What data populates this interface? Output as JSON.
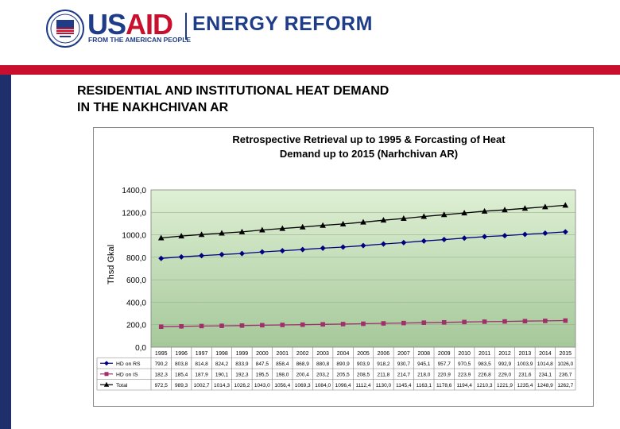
{
  "header": {
    "logo_mark": "USAID",
    "logo_accent": "AID",
    "logo_tagline": "FROM THE AMERICAN PEOPLE",
    "program_name": "ENERGY REFORM",
    "seal_icon": "usaid-seal-icon",
    "brand_blue": "#1f3c88",
    "brand_red": "#c8102e"
  },
  "slide": {
    "title_line1": "RESIDENTIAL AND INSTITUTIONAL HEAT DEMAND",
    "title_line2": "IN THE NAKHCHIVAN AR"
  },
  "chart_data": {
    "type": "line",
    "title_line1": "Retrospective Retrieval up to 1995 & Forcasting of Heat",
    "title_line2": "Demand up to 2015 (Narhchivan AR)",
    "ylabel": "Thsd Gkal",
    "xlabel": "",
    "ylim": [
      0,
      1400
    ],
    "yticks": [
      "0,0",
      "200,0",
      "400,0",
      "600,0",
      "800,0",
      "1000,0",
      "1200,0",
      "1400,0"
    ],
    "grid": true,
    "legend": "data-table",
    "categories": [
      "1995",
      "1996",
      "1997",
      "1998",
      "1999",
      "2000",
      "2001",
      "2002",
      "2003",
      "2004",
      "2005",
      "2006",
      "2007",
      "2008",
      "2009",
      "2010",
      "2011",
      "2012",
      "2013",
      "2014",
      "2015"
    ],
    "series": [
      {
        "name": "HD on RS",
        "color": "#000080",
        "marker": "diamond",
        "values": [
          790.2,
          803.8,
          814.8,
          824.2,
          833.9,
          847.5,
          858.4,
          868.9,
          880.8,
          890.9,
          903.9,
          918.2,
          930.7,
          945.1,
          957.7,
          970.5,
          983.5,
          992.9,
          1003.9,
          1014.8,
          1026.0
        ],
        "labels": [
          "790,2",
          "803,8",
          "814,8",
          "824,2",
          "833,9",
          "847,5",
          "858,4",
          "868,9",
          "880,8",
          "890,9",
          "903,9",
          "918,2",
          "930,7",
          "945,1",
          "957,7",
          "970,5",
          "983,5",
          "992,9",
          "1003,9",
          "1014,8",
          "1026,0"
        ]
      },
      {
        "name": "HD on IS",
        "color": "#a0306a",
        "marker": "square",
        "values": [
          182.3,
          185.4,
          187.9,
          190.1,
          192.3,
          195.5,
          198.0,
          200.4,
          203.2,
          205.5,
          208.5,
          211.8,
          214.7,
          218.0,
          220.9,
          223.9,
          226.8,
          229.0,
          231.6,
          234.1,
          236.7
        ],
        "labels": [
          "182,3",
          "185,4",
          "187,9",
          "190,1",
          "192,3",
          "195,5",
          "198,0",
          "200,4",
          "203,2",
          "205,5",
          "208,5",
          "211,8",
          "214,7",
          "218,0",
          "220,9",
          "223,9",
          "226,8",
          "229,0",
          "231,6",
          "234,1",
          "236,7"
        ]
      },
      {
        "name": "Total",
        "color": "#000000",
        "marker": "triangle",
        "values": [
          972.5,
          989.3,
          1002.7,
          1014.3,
          1026.2,
          1043.0,
          1056.4,
          1069.3,
          1084.0,
          1096.4,
          1112.4,
          1130.0,
          1145.4,
          1163.1,
          1178.6,
          1194.4,
          1210.3,
          1221.9,
          1235.4,
          1248.9,
          1262.7
        ],
        "labels": [
          "972,5",
          "989,3",
          "1002,7",
          "1014,3",
          "1026,2",
          "1043,0",
          "1056,4",
          "1069,3",
          "1084,0",
          "1096,4",
          "1112,4",
          "1130,0",
          "1145,4",
          "1163,1",
          "1178,6",
          "1194,4",
          "1210,3",
          "1221,9",
          "1235,4",
          "1248,9",
          "1262,7"
        ]
      }
    ]
  }
}
